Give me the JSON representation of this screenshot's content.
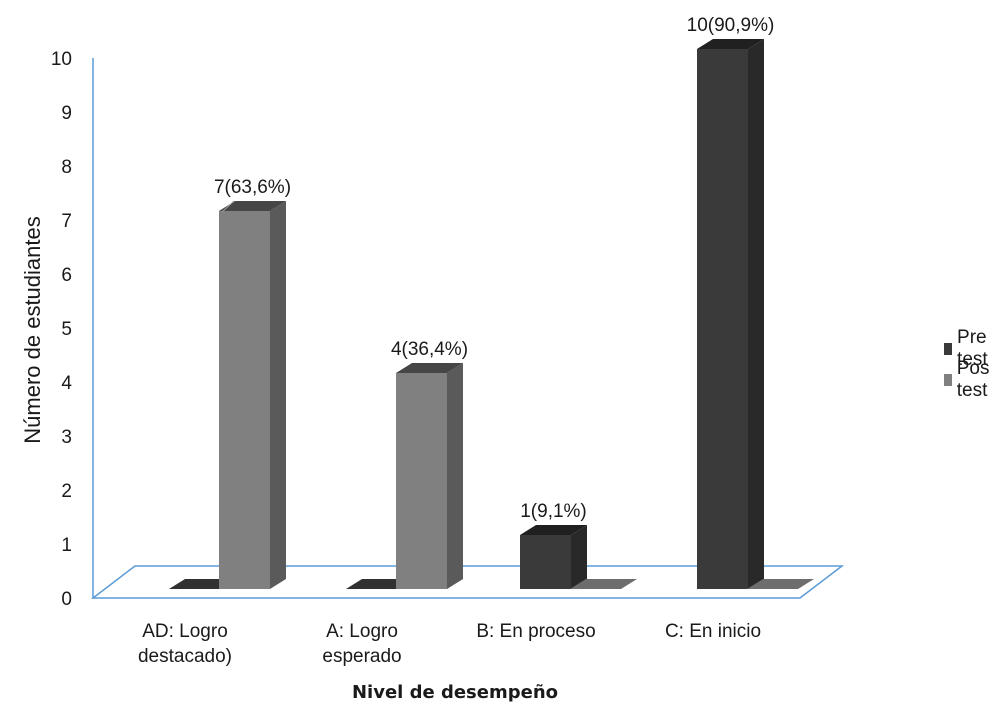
{
  "chart_data": {
    "type": "bar",
    "ylabel": "Número  de estudiantes",
    "xlabel": "Nivel de desempeño",
    "ylim": [
      0,
      10
    ],
    "yticks": [
      "0",
      "1",
      "2",
      "3",
      "4",
      "5",
      "6",
      "7",
      "8",
      "9",
      "10"
    ],
    "categories": [
      [
        "AD: Logro",
        "destacado)"
      ],
      [
        "A: Logro",
        "esperado"
      ],
      [
        "B: En proceso"
      ],
      [
        "C: En inicio"
      ]
    ],
    "series": [
      {
        "name": "Pre test",
        "color": "#3a3a3a",
        "values": [
          0,
          0,
          1,
          10
        ],
        "labels": [
          "",
          "",
          "1(9,1%)",
          "10(90,9%)"
        ]
      },
      {
        "name": "Pos test",
        "color": "#808080",
        "values": [
          7,
          4,
          0,
          0
        ],
        "labels": [
          "7(63,6%)",
          "4(36,4%)",
          "",
          ""
        ]
      }
    ],
    "legend_position": "right",
    "axis_color": "#5b9bd5"
  }
}
